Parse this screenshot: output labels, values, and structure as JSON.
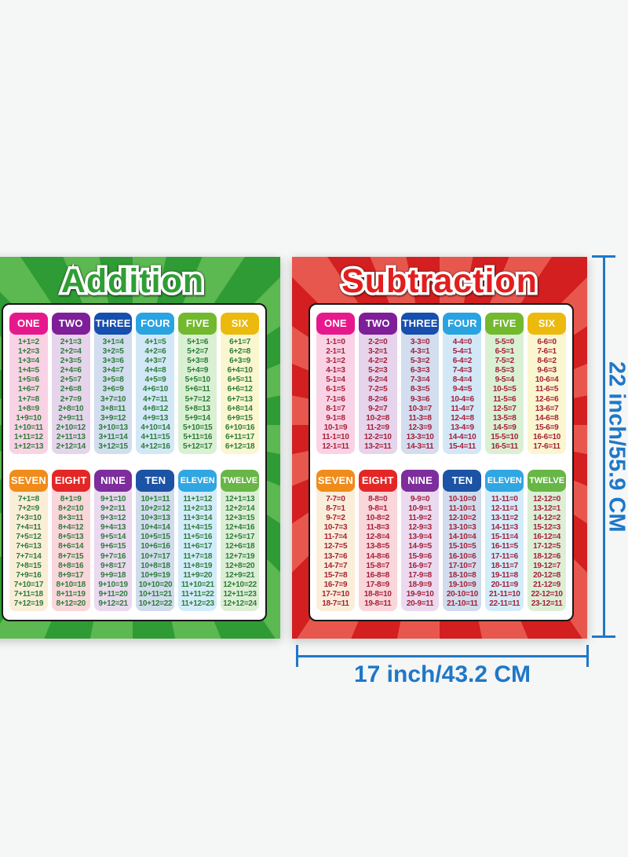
{
  "page": {
    "background": "#f5f6f6"
  },
  "dimension_labels": {
    "height": "22 inch/55.9 CM",
    "width": "17 inch/43.2 CM",
    "color": "#1e78c8"
  },
  "posters": [
    {
      "id": "addition",
      "title": "Addition",
      "title_color": "#2f9e35",
      "bg_light": "#5cb850",
      "bg_dark": "#2f9b35",
      "fact_color": "#2e7d3a",
      "sections": [
        {
          "columns": [
            {
              "label": "ONE",
              "header_color": "#e6198c",
              "body_color": "#f9d3e5",
              "facts": [
                "1+1=2",
                "1+2=3",
                "1+3=4",
                "1+4=5",
                "1+5=6",
                "1+6=7",
                "1+7=8",
                "1+8=9",
                "1+9=10",
                "1+10=11",
                "1+11=12",
                "1+12=13"
              ]
            },
            {
              "label": "TWO",
              "header_color": "#7e1f99",
              "body_color": "#e6d4ec",
              "facts": [
                "2+1=3",
                "2+2=4",
                "2+3=5",
                "2+4=6",
                "2+5=7",
                "2+6=8",
                "2+7=9",
                "2+8=10",
                "2+9=11",
                "2+10=12",
                "2+11=13",
                "2+12=14"
              ]
            },
            {
              "label": "THREE",
              "header_color": "#164fae",
              "body_color": "#d2ddef",
              "facts": [
                "3+1=4",
                "3+2=5",
                "3+3=6",
                "3+4=7",
                "3+5=8",
                "3+6=9",
                "3+7=10",
                "3+8=11",
                "3+9=12",
                "3+10=13",
                "3+11=14",
                "3+12=15"
              ]
            },
            {
              "label": "FOUR",
              "header_color": "#2aa3e2",
              "body_color": "#d2e8f7",
              "facts": [
                "4+1=5",
                "4+2=6",
                "4+3=7",
                "4+4=8",
                "4+5=9",
                "4+6=10",
                "4+7=11",
                "4+8=12",
                "4+9=13",
                "4+10=14",
                "4+11=15",
                "4+12=16"
              ]
            },
            {
              "label": "FIVE",
              "header_color": "#72b92e",
              "body_color": "#daf0d3",
              "facts": [
                "5+1=6",
                "5+2=7",
                "5+3=8",
                "5+4=9",
                "5+5=10",
                "5+6=11",
                "5+7=12",
                "5+8=13",
                "5+9=14",
                "5+10=15",
                "5+11=16",
                "5+12=17"
              ]
            },
            {
              "label": "SIX",
              "header_color": "#ecb90d",
              "body_color": "#faf6d0",
              "facts": [
                "6+1=7",
                "6+2=8",
                "6+3=9",
                "6+4=10",
                "6+5=11",
                "6+6=12",
                "6+7=13",
                "6+8=14",
                "6+9=15",
                "6+10=16",
                "6+11=17",
                "6+12=18"
              ]
            }
          ]
        },
        {
          "columns": [
            {
              "label": "SEVEN",
              "header_color": "#f08c1b",
              "body_color": "#fbeed9",
              "facts": [
                "7+1=8",
                "7+2=9",
                "7+3=10",
                "7+4=11",
                "7+5=12",
                "7+6=13",
                "7+7=14",
                "7+8=15",
                "7+9=16",
                "7+10=17",
                "7+11=18",
                "7+12=19"
              ]
            },
            {
              "label": "EIGHT",
              "header_color": "#e32726",
              "body_color": "#f9d6da",
              "facts": [
                "8+1=9",
                "8+2=10",
                "8+3=11",
                "8+4=12",
                "8+5=13",
                "8+6=14",
                "8+7=15",
                "8+8=16",
                "8+9=17",
                "8+10=18",
                "8+11=19",
                "8+12=20"
              ]
            },
            {
              "label": "NINE",
              "header_color": "#7d2d9c",
              "body_color": "#ead9ef",
              "facts": [
                "9+1=10",
                "9+2=11",
                "9+3=12",
                "9+4=13",
                "9+5=14",
                "9+6=15",
                "9+7=16",
                "9+8=17",
                "9+9=18",
                "9+10=19",
                "9+11=20",
                "9+12=21"
              ]
            },
            {
              "label": "TEN",
              "header_color": "#1c53a5",
              "body_color": "#d0dcec",
              "facts": [
                "10+1=11",
                "10+2=12",
                "10+3=13",
                "10+4=14",
                "10+5=15",
                "10+6=16",
                "10+7=17",
                "10+8=18",
                "10+9=19",
                "10+10=20",
                "10+11=21",
                "10+12=22"
              ]
            },
            {
              "label": "ELEVEN",
              "header_color": "#30a6e2",
              "body_color": "#d3ecfa",
              "facts": [
                "11+1=12",
                "11+2=13",
                "11+3=14",
                "11+4=15",
                "11+5=16",
                "11+6=17",
                "11+7=18",
                "11+8=19",
                "11+9=20",
                "11+10=21",
                "11+11=22",
                "11+12=23"
              ]
            },
            {
              "label": "TWELVE",
              "header_color": "#67b646",
              "body_color": "#dcefd6",
              "facts": [
                "12+1=13",
                "12+2=14",
                "12+3=15",
                "12+4=16",
                "12+5=17",
                "12+6=18",
                "12+7=19",
                "12+8=20",
                "12+9=21",
                "12+10=22",
                "12+11=23",
                "12+12=24"
              ]
            }
          ]
        }
      ]
    },
    {
      "id": "subtraction",
      "title": "Subtraction",
      "title_color": "#e31e1e",
      "bg_light": "#e8574e",
      "bg_dark": "#d31f1f",
      "fact_color": "#a5213a",
      "sections": [
        {
          "columns": [
            {
              "label": "ONE",
              "header_color": "#e6198c",
              "body_color": "#f9d3e5",
              "facts": [
                "1-1=0",
                "2-1=1",
                "3-1=2",
                "4-1=3",
                "5-1=4",
                "6-1=5",
                "7-1=6",
                "8-1=7",
                "9-1=8",
                "10-1=9",
                "11-1=10",
                "12-1=11"
              ]
            },
            {
              "label": "TWO",
              "header_color": "#7e1f99",
              "body_color": "#e6d4ec",
              "facts": [
                "2-2=0",
                "3-2=1",
                "4-2=2",
                "5-2=3",
                "6-2=4",
                "7-2=5",
                "8-2=6",
                "9-2=7",
                "10-2=8",
                "11-2=9",
                "12-2=10",
                "13-2=11"
              ]
            },
            {
              "label": "THREE",
              "header_color": "#164fae",
              "body_color": "#d2ddef",
              "facts": [
                "3-3=0",
                "4-3=1",
                "5-3=2",
                "6-3=3",
                "7-3=4",
                "8-3=5",
                "9-3=6",
                "10-3=7",
                "11-3=8",
                "12-3=9",
                "13-3=10",
                "14-3=11"
              ]
            },
            {
              "label": "FOUR",
              "header_color": "#2aa3e2",
              "body_color": "#d2e8f7",
              "facts": [
                "4-4=0",
                "5-4=1",
                "6-4=2",
                "7-4=3",
                "8-4=4",
                "9-4=5",
                "10-4=6",
                "11-4=7",
                "12-4=8",
                "13-4=9",
                "14-4=10",
                "15-4=11"
              ]
            },
            {
              "label": "FIVE",
              "header_color": "#72b92e",
              "body_color": "#daf0d3",
              "facts": [
                "5-5=0",
                "6-5=1",
                "7-5=2",
                "8-5=3",
                "9-5=4",
                "10-5=5",
                "11-5=6",
                "12-5=7",
                "13-5=8",
                "14-5=9",
                "15-5=10",
                "16-5=11"
              ]
            },
            {
              "label": "SIX",
              "header_color": "#ecb90d",
              "body_color": "#faf6d0",
              "facts": [
                "6-6=0",
                "7-6=1",
                "8-6=2",
                "9-6=3",
                "10-6=4",
                "11-6=5",
                "12-6=6",
                "13-6=7",
                "14-6=8",
                "15-6=9",
                "16-6=10",
                "17-6=11"
              ]
            }
          ]
        },
        {
          "columns": [
            {
              "label": "SEVEN",
              "header_color": "#f08c1b",
              "body_color": "#fbeed9",
              "facts": [
                "7-7=0",
                "8-7=1",
                "9-7=2",
                "10-7=3",
                "11-7=4",
                "12-7=5",
                "13-7=6",
                "14-7=7",
                "15-7=8",
                "16-7=9",
                "17-7=10",
                "18-7=11"
              ]
            },
            {
              "label": "EIGHT",
              "header_color": "#e32726",
              "body_color": "#f9d6da",
              "facts": [
                "8-8=0",
                "9-8=1",
                "10-8=2",
                "11-8=3",
                "12-8=4",
                "13-8=5",
                "14-8=6",
                "15-8=7",
                "16-8=8",
                "17-8=9",
                "18-8=10",
                "19-8=11"
              ]
            },
            {
              "label": "NINE",
              "header_color": "#7d2d9c",
              "body_color": "#ead9ef",
              "facts": [
                "9-9=0",
                "10-9=1",
                "11-9=2",
                "12-9=3",
                "13-9=4",
                "14-9=5",
                "15-9=6",
                "16-9=7",
                "17-9=8",
                "18-9=9",
                "19-9=10",
                "20-9=11"
              ]
            },
            {
              "label": "TEN",
              "header_color": "#1c53a5",
              "body_color": "#d0dcec",
              "facts": [
                "10-10=0",
                "11-10=1",
                "12-10=2",
                "13-10=3",
                "14-10=4",
                "15-10=5",
                "16-10=6",
                "17-10=7",
                "18-10=8",
                "19-10=9",
                "20-10=10",
                "21-10=11"
              ]
            },
            {
              "label": "ELEVEN",
              "header_color": "#30a6e2",
              "body_color": "#d3ecfa",
              "facts": [
                "11-11=0",
                "12-11=1",
                "13-11=2",
                "14-11=3",
                "15-11=4",
                "16-11=5",
                "17-11=6",
                "18-11=7",
                "19-11=8",
                "20-11=9",
                "21-11=10",
                "22-11=11"
              ]
            },
            {
              "label": "TWELVE",
              "header_color": "#67b646",
              "body_color": "#dcefd6",
              "facts": [
                "12-12=0",
                "13-12=1",
                "14-12=2",
                "15-12=3",
                "16-12=4",
                "17-12=5",
                "18-12=6",
                "19-12=7",
                "20-12=8",
                "21-12=9",
                "22-12=10",
                "23-12=11"
              ]
            }
          ]
        }
      ]
    }
  ]
}
